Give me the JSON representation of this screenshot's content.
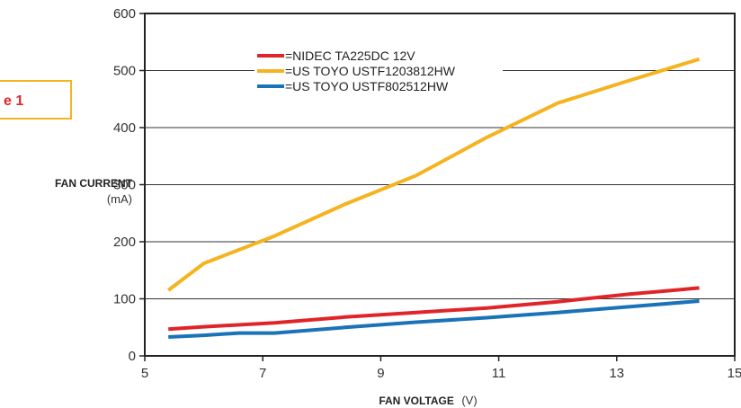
{
  "figure_label": "e 1",
  "chart_data": {
    "type": "line",
    "title": "",
    "xlabel": "FAN VOLTAGE",
    "xlabel_unit": "(V)",
    "ylabel": "FAN CURRENT",
    "ylabel_unit": "(mA)",
    "xlim": [
      5,
      15
    ],
    "ylim": [
      0,
      600
    ],
    "xticks": [
      5,
      7,
      9,
      11,
      13,
      15
    ],
    "yticks": [
      0,
      100,
      200,
      300,
      400,
      500,
      600
    ],
    "grid": "horizontal",
    "legend_position": "top-center",
    "series": [
      {
        "name": "=NIDEC TA225DC 12V",
        "color": "#e0252a",
        "x": [
          5.4,
          6.0,
          7.2,
          8.4,
          9.6,
          10.8,
          12.0,
          13.2,
          14.4
        ],
        "y": [
          47,
          51,
          58,
          68,
          76,
          84,
          95,
          108,
          119
        ]
      },
      {
        "name": "=US TOYO USTF1203812HW",
        "color": "#f5b320",
        "x": [
          5.4,
          6.0,
          6.6,
          7.2,
          8.4,
          9.6,
          10.8,
          12.0,
          13.2,
          14.4
        ],
        "y": [
          115,
          162,
          186,
          210,
          266,
          316,
          383,
          443,
          482,
          520
        ]
      },
      {
        "name": "=US TOYO USTF802512HW",
        "color": "#1a72b8",
        "x": [
          5.4,
          6.0,
          6.6,
          7.2,
          8.4,
          9.6,
          10.8,
          12.0,
          13.2,
          14.4
        ],
        "y": [
          33,
          36,
          40,
          40,
          50,
          59,
          67,
          76,
          86,
          96
        ]
      }
    ]
  }
}
